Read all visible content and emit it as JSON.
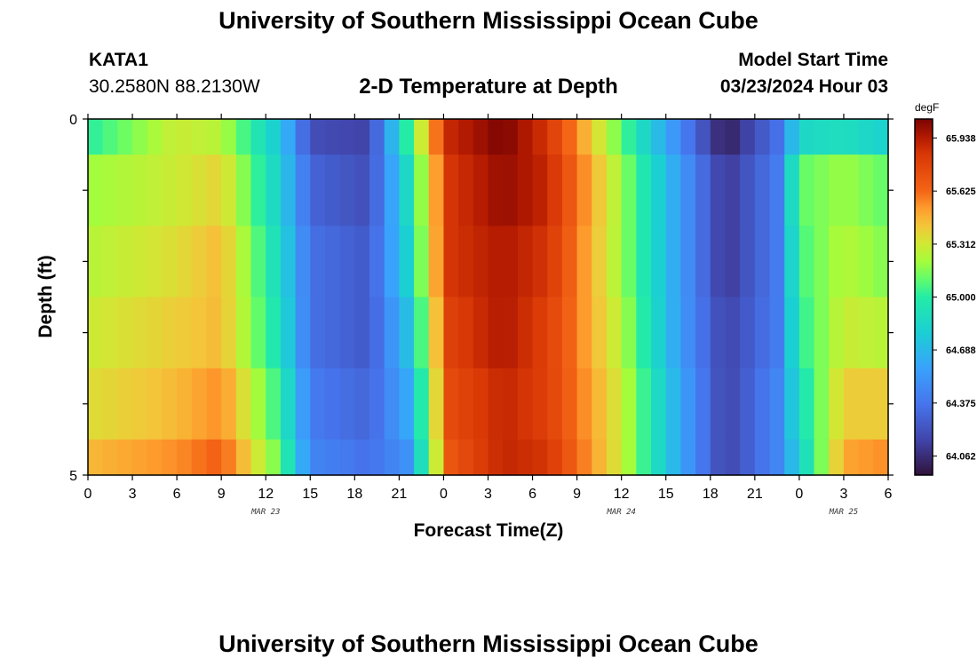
{
  "header": {
    "title": "University of Southern Mississippi Ocean Cube",
    "station": "KATA1",
    "coords": "30.2580N  88.2130W",
    "subtitle": "2-D Temperature at Depth",
    "model_label": "Model Start Time",
    "model_time": "03/23/2024 Hour 03"
  },
  "footer": {
    "title": "University of Southern Mississippi Ocean Cube"
  },
  "chart_data": {
    "type": "heatmap",
    "title": "2-D Temperature at Depth",
    "xlabel": "Forecast Time(Z)",
    "ylabel": "Depth (ft)",
    "x_ticks": [
      "0",
      "3",
      "6",
      "9",
      "12",
      "15",
      "18",
      "21",
      "0",
      "3",
      "6",
      "9",
      "12",
      "15",
      "18",
      "21",
      "0",
      "3",
      "6"
    ],
    "date_labels": [
      {
        "label": "MAR 23",
        "hour_index": 12
      },
      {
        "label": "MAR 24",
        "hour_index": 36
      },
      {
        "label": "MAR 25",
        "hour_index": 51
      }
    ],
    "y_ticks": [
      "0",
      "5"
    ],
    "ylim": [
      0,
      5
    ],
    "x_range_hours": [
      0,
      54
    ],
    "colorbar": {
      "unit": "degF",
      "min": 63.95,
      "max": 66.05,
      "ticks": [
        "65.938",
        "65.625",
        "65.312",
        "65.000",
        "64.688",
        "64.375",
        "64.062"
      ],
      "tick_values": [
        65.938,
        65.625,
        65.312,
        65.0,
        64.688,
        64.375,
        64.062
      ]
    },
    "depth_bands_ft": [
      0,
      1,
      2,
      3,
      4,
      5
    ],
    "hours": [
      0,
      6,
      9,
      13,
      15,
      19,
      21.5,
      24.5,
      28,
      31,
      36,
      40,
      43,
      46.5,
      48,
      51,
      54
    ],
    "rows": [
      [
        65.0,
        65.3,
        65.25,
        64.75,
        64.2,
        64.15,
        65.0,
        65.9,
        66.05,
        65.85,
        65.1,
        64.45,
        64.0,
        64.35,
        64.85,
        64.9,
        64.8
      ],
      [
        65.2,
        65.3,
        65.38,
        64.8,
        64.3,
        64.2,
        64.85,
        65.85,
        66.0,
        65.9,
        65.2,
        64.55,
        64.1,
        64.4,
        65.1,
        65.2,
        65.1
      ],
      [
        65.25,
        65.35,
        65.45,
        64.85,
        64.35,
        64.25,
        64.8,
        65.85,
        65.95,
        65.85,
        65.2,
        64.55,
        64.1,
        64.4,
        65.05,
        65.25,
        65.15
      ],
      [
        65.3,
        65.4,
        65.45,
        64.9,
        64.35,
        64.25,
        64.7,
        65.8,
        65.95,
        65.8,
        65.25,
        64.55,
        64.15,
        64.4,
        65.0,
        65.3,
        65.25
      ],
      [
        65.35,
        65.45,
        65.55,
        65.0,
        64.4,
        64.3,
        64.6,
        65.75,
        65.9,
        65.8,
        65.3,
        64.6,
        64.15,
        64.45,
        64.9,
        65.4,
        65.4
      ],
      [
        65.45,
        65.55,
        65.65,
        65.1,
        64.45,
        64.35,
        64.5,
        65.7,
        65.9,
        65.85,
        65.3,
        64.6,
        64.15,
        64.45,
        64.8,
        65.5,
        65.55
      ]
    ]
  }
}
